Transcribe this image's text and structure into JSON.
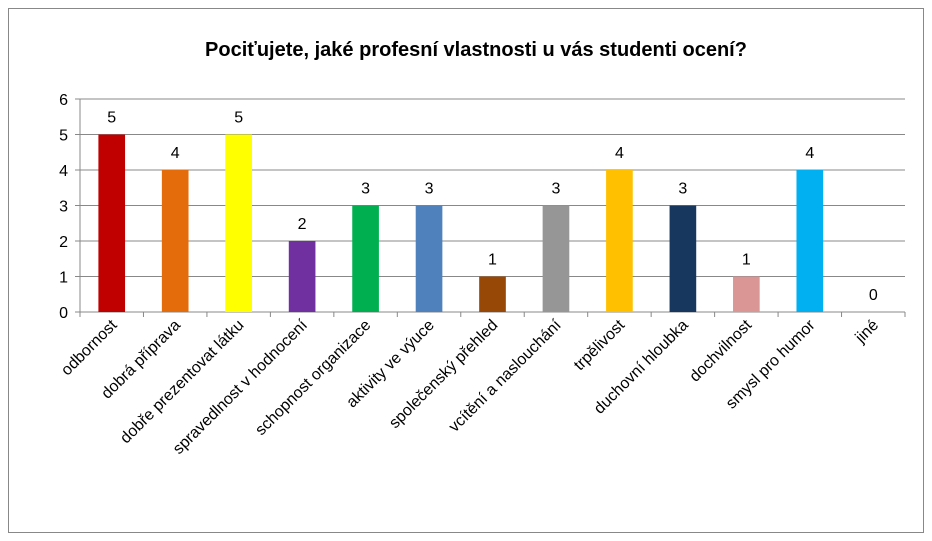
{
  "chart_data": {
    "type": "bar",
    "title": "Pociťujete, jaké profesní vlastnosti u vás studenti ocení?",
    "categories": [
      "odbornost",
      "dobrá příprava",
      "dobře prezentovat látku",
      "spravedlnost v hodnocení",
      "schopnost organizace",
      "aktivity ve výuce",
      "společenský přehled",
      "vcítění a naslouchání",
      "trpělivost",
      "duchovní hloubka",
      "dochvilnost",
      "smysl pro humor",
      "jiné"
    ],
    "values": [
      5,
      4,
      5,
      2,
      3,
      3,
      1,
      3,
      4,
      3,
      1,
      4,
      0
    ],
    "colors": [
      "#c00000",
      "#e46c0a",
      "#ffff00",
      "#7030a0",
      "#00b050",
      "#4f81bd",
      "#974706",
      "#969696",
      "#ffc000",
      "#17375e",
      "#d99694",
      "#00b0f0",
      "#8064a2"
    ],
    "ylim": [
      0,
      6
    ],
    "yticks": [
      0,
      1,
      2,
      3,
      4,
      5,
      6
    ],
    "grid": true
  }
}
